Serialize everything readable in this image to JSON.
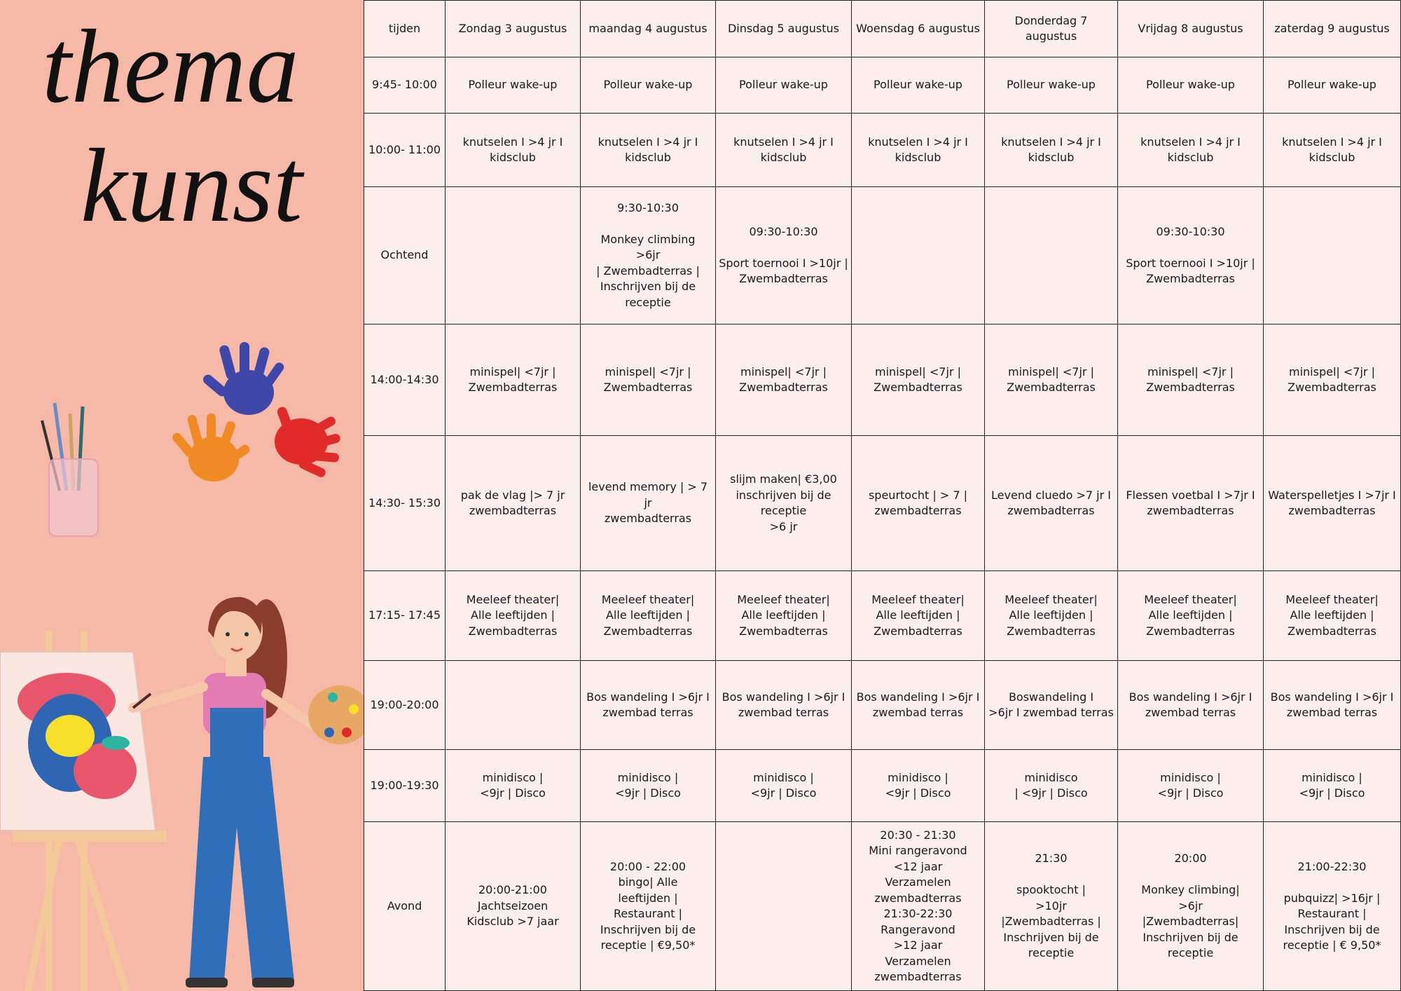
{
  "title": {
    "line1": "thema",
    "line2": "kunst"
  },
  "table": {
    "header": [
      "tijden",
      "Zondag 3 augustus",
      "maandag 4 augustus",
      "Dinsdag 5 augustus",
      "Woensdag 6 augustus",
      "Donderdag 7  augustus",
      "Vrijdag 8 augustus",
      "zaterdag 9 augustus"
    ],
    "rows": [
      [
        "9:45- 10:00",
        "Polleur wake-up",
        "Polleur wake-up",
        "Polleur wake-up",
        "Polleur wake-up",
        "Polleur wake-up",
        "Polleur wake-up",
        "Polleur wake-up"
      ],
      [
        "10:00- 11:00",
        "knutselen I >4 jr I\nkidsclub",
        "knutselen I >4 jr I\nkidsclub",
        "knutselen I >4 jr I\nkidsclub",
        "knutselen I >4 jr I\nkidsclub",
        "knutselen I >4 jr I\nkidsclub",
        "knutselen I >4 jr I\nkidsclub",
        "knutselen I >4 jr I\nkidsclub"
      ],
      [
        "Ochtend",
        null,
        "9:30-10:30\n\nMonkey climbing\n>6jr\n| Zwembadterras |\nInschrijven bij de\nreceptie",
        "09:30-10:30\n\nSport toernooi I >10jr |\nZwembadterras",
        null,
        null,
        "09:30-10:30\n\nSport toernooi I >10jr |\nZwembadterras",
        null
      ],
      [
        "14:00-14:30",
        "minispel| <7jr |\nZwembadterras",
        "minispel| <7jr |\nZwembadterras",
        "minispel| <7jr |\nZwembadterras",
        "minispel| <7jr |\nZwembadterras",
        "minispel| <7jr |\nZwembadterras",
        "minispel| <7jr |\nZwembadterras",
        "minispel| <7jr |\nZwembadterras"
      ],
      [
        "14:30- 15:30",
        "pak de vlag |> 7 jr\nzwembadterras",
        "levend memory | > 7 jr\nzwembadterras",
        "slijm maken| €3,00\ninschrijven bij de\nreceptie\n>6 jr",
        "speurtocht | > 7 |\nzwembadterras",
        "Levend cluedo >7 jr I\nzwembadterras",
        "Flessen voetbal I >7jr I\nzwembadterras",
        "Waterspelletjes I >7jr I\nzwembadterras"
      ],
      [
        "17:15- 17:45",
        "Meeleef theater|\nAlle leeftijden |\nZwembadterras",
        "Meeleef theater|\nAlle leeftijden |\nZwembadterras",
        "Meeleef theater|\nAlle leeftijden |\nZwembadterras",
        "Meeleef theater|\nAlle leeftijden |\nZwembadterras",
        "Meeleef theater|\nAlle leeftijden |\nZwembadterras",
        "Meeleef theater|\nAlle leeftijden |\nZwembadterras",
        "Meeleef theater|\nAlle leeftijden |\nZwembadterras"
      ],
      [
        "19:00-20:00",
        null,
        "Bos wandeling I >6jr I\nzwembad terras",
        "Bos wandeling I >6jr I\nzwembad terras",
        "Bos wandeling I >6jr I\nzwembad terras",
        "Boswandeling I\n>6jr I zwembad terras",
        "Bos wandeling I >6jr I\nzwembad terras",
        "Bos wandeling I >6jr I\nzwembad terras"
      ],
      [
        "19:00-19:30",
        "minidisco |\n<9jr | Disco",
        "minidisco |\n<9jr | Disco",
        "minidisco |\n<9jr | Disco",
        "minidisco |\n<9jr | Disco",
        "minidisco\n| <9jr |  Disco",
        "minidisco |\n<9jr | Disco",
        "minidisco |\n<9jr | Disco"
      ],
      [
        "Avond",
        "20:00-21:00\nJachtseizoen\nKidsclub >7 jaar",
        "20:00 - 22:00\nbingo| Alle\nleeftijden |\nRestaurant |\nInschrijven bij de\nreceptie | €9,50*",
        null,
        "20:30 - 21:30\nMini rangeravond\n<12 jaar\nVerzamelen\nzwembadterras\n21:30-22:30\nRangeravond\n>12 jaar\nVerzamelen\nzwembadterras",
        "21:30\n\nspooktocht |\n>10jr\n|Zwembadterras |\nInschrijven bij de\nreceptie",
        "20:00\n\nMonkey climbing|\n>6jr\n|Zwembadterras|\nInschrijven bij de\nreceptie",
        "21:00-22:30\n\npubquizz| >16jr |\nRestaurant |\nInschrijven bij de\nreceptie | € 9,50*"
      ]
    ]
  }
}
